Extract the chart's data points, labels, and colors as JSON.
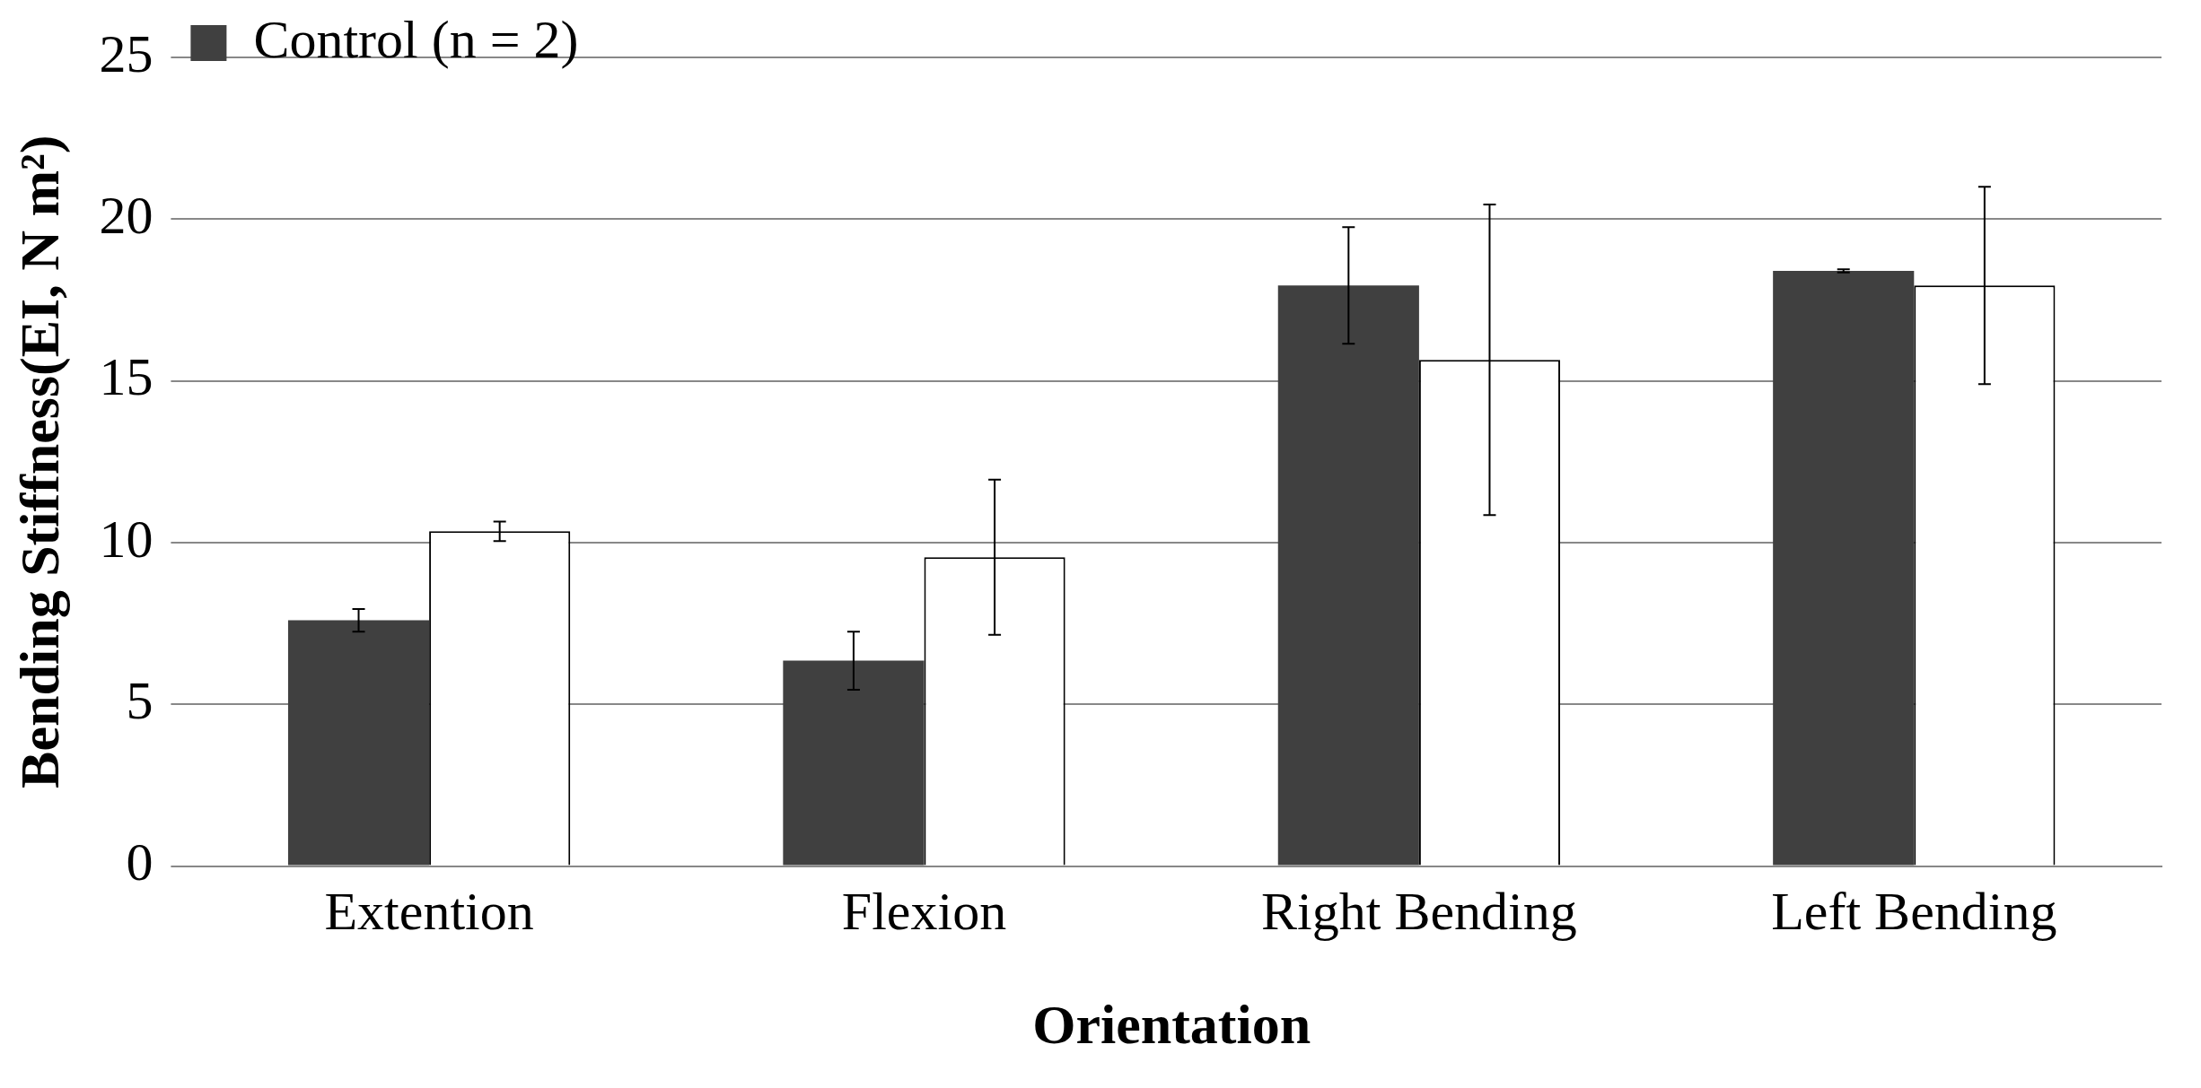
{
  "chart_data": {
    "type": "bar",
    "xlabel": "Orientation",
    "ylabel": "Bending Stiffness(EI, N m²)",
    "categories": [
      "Extention",
      "Flexion",
      "Right Bending",
      "Left Bending"
    ],
    "series": [
      {
        "name": "Control (n = 2)",
        "color": "#404040",
        "values": [
          7.6,
          6.35,
          17.95,
          18.4
        ],
        "errors": [
          0.35,
          0.9,
          1.8,
          0.05
        ]
      },
      {
        "color": "#ffffff",
        "values": [
          10.35,
          9.55,
          15.65,
          17.95
        ],
        "errors": [
          0.3,
          2.4,
          4.8,
          3.05
        ]
      }
    ],
    "ylim": [
      0,
      25
    ],
    "yticks": [
      0,
      5,
      10,
      15,
      20,
      25
    ],
    "grid": "y",
    "legend": "top left"
  }
}
